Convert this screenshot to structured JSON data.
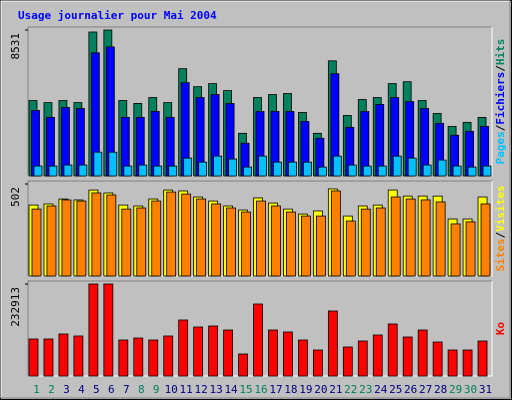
{
  "title": "Usage journalier pour Mai 2004",
  "legend_separator": "/",
  "chart_data": [
    {
      "type": "bar",
      "ylim": [
        0,
        8531
      ],
      "yticks": [
        8531
      ],
      "series": [
        {
          "name": "Hits",
          "color": "#00805c",
          "values": [
            4410,
            4290,
            4410,
            4290,
            8415,
            8531,
            4410,
            4240,
            4585,
            4290,
            6270,
            5220,
            5400,
            4990,
            2495,
            4585,
            4760,
            4820,
            3715,
            2495,
            6730,
            3540,
            4470,
            4585,
            5400,
            5510,
            4410,
            3655,
            2900,
            3135,
            3425
          ]
        },
        {
          "name": "Fichiers",
          "color": "#0000ff",
          "values": [
            3830,
            3425,
            4005,
            3945,
            7195,
            7545,
            3425,
            3425,
            3770,
            3425,
            5455,
            4585,
            4760,
            4235,
            1915,
            3770,
            3770,
            3770,
            3190,
            2205,
            5975,
            2845,
            3770,
            4180,
            4585,
            4350,
            3945,
            3075,
            2380,
            2610,
            2900
          ]
        },
        {
          "name": "Pages",
          "color": "#00c0ff",
          "values": [
            580,
            580,
            640,
            640,
            1390,
            1390,
            580,
            640,
            580,
            580,
            1045,
            810,
            1160,
            990,
            520,
            1160,
            810,
            810,
            810,
            520,
            1160,
            640,
            580,
            580,
            1160,
            1045,
            640,
            930,
            580,
            520,
            580
          ]
        }
      ]
    },
    {
      "type": "bar",
      "ylim": [
        0,
        502
      ],
      "yticks": [
        502
      ],
      "series": [
        {
          "name": "Visites",
          "color": "#ffff00",
          "values": [
            387,
            393,
            420,
            415,
            469,
            453,
            387,
            382,
            420,
            469,
            464,
            431,
            409,
            382,
            360,
            426,
            398,
            365,
            338,
            355,
            475,
            327,
            382,
            387,
            469,
            436,
            436,
            436,
            311,
            311,
            431
          ]
        },
        {
          "name": "Sites",
          "color": "#ff8000",
          "values": [
            365,
            382,
            415,
            409,
            453,
            442,
            365,
            371,
            409,
            458,
            447,
            420,
            393,
            371,
            349,
            409,
            382,
            349,
            327,
            327,
            464,
            300,
            365,
            371,
            431,
            420,
            415,
            404,
            284,
            295,
            393
          ]
        }
      ]
    },
    {
      "type": "bar",
      "ylim": [
        0,
        232913
      ],
      "yticks": [
        232913
      ],
      "categories": [
        "1",
        "2",
        "3",
        "4",
        "5",
        "6",
        "7",
        "8",
        "9",
        "10",
        "11",
        "12",
        "13",
        "14",
        "15",
        "16",
        "17",
        "18",
        "19",
        "20",
        "21",
        "22",
        "23",
        "24",
        "25",
        "26",
        "27",
        "28",
        "29",
        "30",
        "31"
      ],
      "category_colors": [
        "#00805c",
        "#00805c",
        "#000080",
        "#000080",
        "#000080",
        "#000080",
        "#000080",
        "#00805c",
        "#00805c",
        "#000080",
        "#000080",
        "#000080",
        "#000080",
        "#000080",
        "#00805c",
        "#00805c",
        "#000080",
        "#000080",
        "#000080",
        "#000080",
        "#000080",
        "#00805c",
        "#00805c",
        "#000080",
        "#000080",
        "#000080",
        "#000080",
        "#000080",
        "#00805c",
        "#00805c",
        "#000080"
      ],
      "series": [
        {
          "name": "Ko",
          "color": "#ff0000",
          "values": [
            93670,
            93670,
            106330,
            101270,
            232913,
            232913,
            91140,
            96200,
            91140,
            101270,
            141770,
            124050,
            126580,
            116460,
            55700,
            182280,
            116460,
            111400,
            91140,
            65820,
            164560,
            73420,
            88610,
            103800,
            131640,
            98740,
            116460,
            86080,
            65820,
            65820,
            88610
          ]
        }
      ]
    }
  ]
}
